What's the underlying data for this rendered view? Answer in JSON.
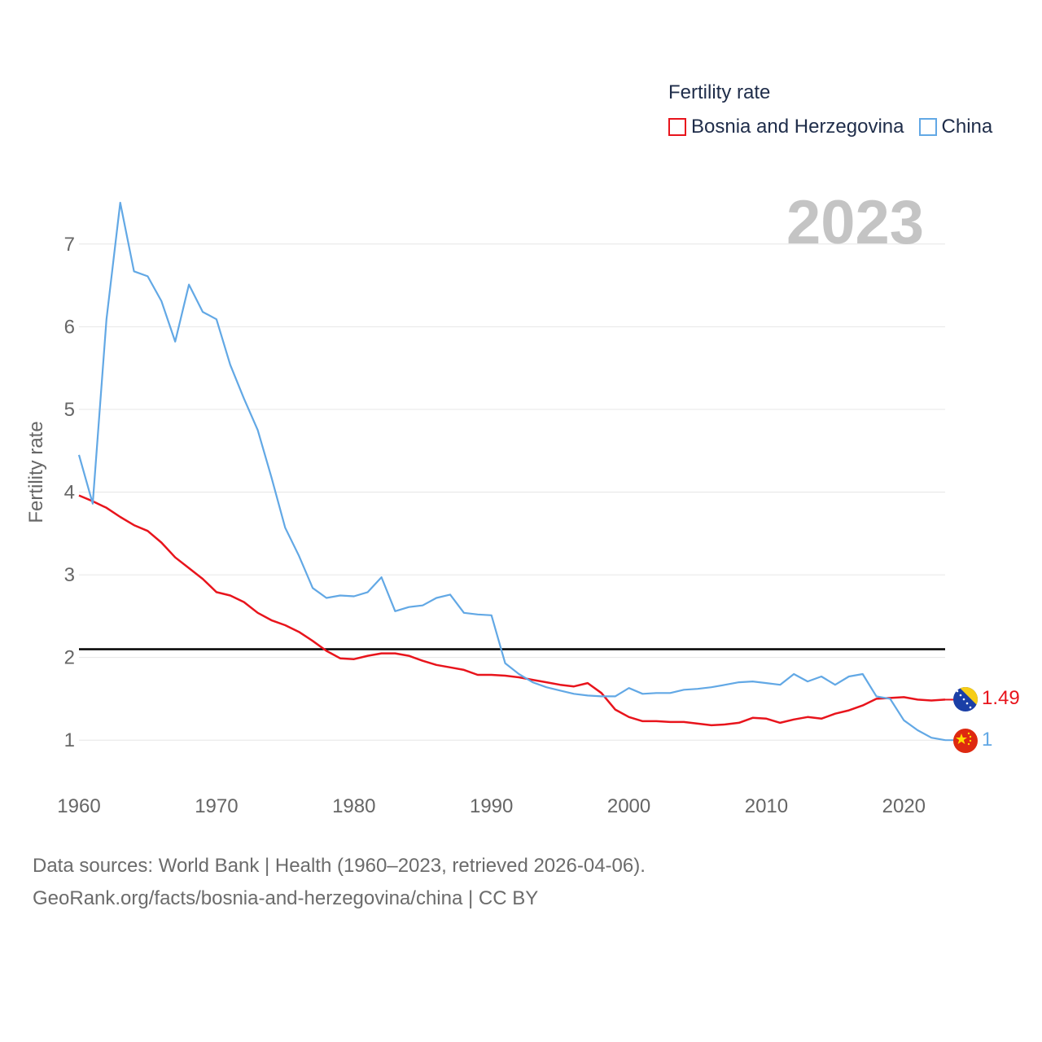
{
  "legend": {
    "title": "Fertility rate",
    "items": [
      {
        "label": "Bosnia and Herzegovina",
        "color": "#e8141c"
      },
      {
        "label": "China",
        "color": "#62a8e5"
      }
    ]
  },
  "highlight_year": "2023",
  "footer": {
    "line1": "Data sources: World Bank | Health (1960–2023, retrieved 2026-04-06).",
    "line2": "GeoRank.org/facts/bosnia-and-herzegovina/china | CC BY"
  },
  "end_labels": {
    "bih": "1.49",
    "china": "1"
  },
  "chart_data": {
    "type": "line",
    "title": "Fertility rate",
    "xlabel": "",
    "ylabel": "Fertility rate",
    "xlim": [
      1960,
      2023
    ],
    "ylim": [
      0.5,
      7.5
    ],
    "x_ticks": [
      1960,
      1970,
      1980,
      1990,
      2000,
      2010,
      2020
    ],
    "y_ticks": [
      1,
      2,
      3,
      4,
      5,
      6,
      7
    ],
    "reference_line": {
      "y": 2.1,
      "color": "#000000"
    },
    "x": [
      1960,
      1961,
      1962,
      1963,
      1964,
      1965,
      1966,
      1967,
      1968,
      1969,
      1970,
      1971,
      1972,
      1973,
      1974,
      1975,
      1976,
      1977,
      1978,
      1979,
      1980,
      1981,
      1982,
      1983,
      1984,
      1985,
      1986,
      1987,
      1988,
      1989,
      1990,
      1991,
      1992,
      1993,
      1994,
      1995,
      1996,
      1997,
      1998,
      1999,
      2000,
      2001,
      2002,
      2003,
      2004,
      2005,
      2006,
      2007,
      2008,
      2009,
      2010,
      2011,
      2012,
      2013,
      2014,
      2015,
      2016,
      2017,
      2018,
      2019,
      2020,
      2021,
      2022,
      2023
    ],
    "series": [
      {
        "name": "Bosnia and Herzegovina",
        "color": "#e8141c",
        "values": [
          3.96,
          3.89,
          3.81,
          3.7,
          3.6,
          3.53,
          3.39,
          3.21,
          3.08,
          2.95,
          2.79,
          2.75,
          2.67,
          2.54,
          2.45,
          2.39,
          2.31,
          2.2,
          2.08,
          1.99,
          1.98,
          2.02,
          2.05,
          2.05,
          2.02,
          1.96,
          1.91,
          1.88,
          1.85,
          1.79,
          1.79,
          1.78,
          1.76,
          1.73,
          1.7,
          1.67,
          1.65,
          1.69,
          1.57,
          1.37,
          1.28,
          1.23,
          1.23,
          1.22,
          1.22,
          1.2,
          1.18,
          1.19,
          1.21,
          1.27,
          1.26,
          1.21,
          1.25,
          1.28,
          1.26,
          1.32,
          1.36,
          1.42,
          1.5,
          1.51,
          1.52,
          1.49,
          1.48,
          1.49
        ]
      },
      {
        "name": "China",
        "color": "#62a8e5",
        "values": [
          4.45,
          3.86,
          6.09,
          7.5,
          6.67,
          6.61,
          6.31,
          5.82,
          6.51,
          6.18,
          6.09,
          5.54,
          5.13,
          4.75,
          4.18,
          3.57,
          3.23,
          2.84,
          2.72,
          2.75,
          2.74,
          2.79,
          2.97,
          2.56,
          2.61,
          2.63,
          2.72,
          2.76,
          2.54,
          2.52,
          2.51,
          1.93,
          1.8,
          1.7,
          1.64,
          1.6,
          1.56,
          1.54,
          1.53,
          1.53,
          1.63,
          1.56,
          1.57,
          1.57,
          1.61,
          1.62,
          1.64,
          1.67,
          1.7,
          1.71,
          1.69,
          1.67,
          1.8,
          1.71,
          1.77,
          1.67,
          1.77,
          1.8,
          1.53,
          1.5,
          1.24,
          1.12,
          1.03,
          1.0
        ]
      }
    ]
  }
}
